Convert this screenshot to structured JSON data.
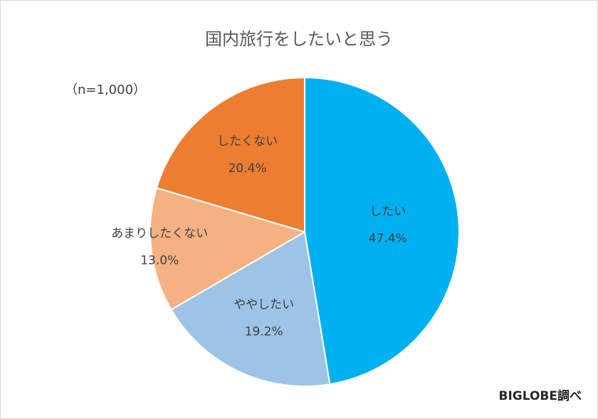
{
  "chart_data": {
    "type": "pie",
    "title": "国内旅行をしたいと思う",
    "note": "（n=1,000）",
    "source": "BIGLOBE調べ",
    "slices": [
      {
        "label": "したい",
        "value": 47.4,
        "value_label": "47.4%",
        "color": "#00B0F0"
      },
      {
        "label": "ややしたい",
        "value": 19.2,
        "value_label": "19.2%",
        "color": "#9DC3E6"
      },
      {
        "label": "あまりしたくない",
        "value": 13.0,
        "value_label": "13.0%",
        "color": "#F4B183"
      },
      {
        "label": "したくない",
        "value": 20.4,
        "value_label": "20.4%",
        "color": "#ED7D31"
      }
    ]
  }
}
